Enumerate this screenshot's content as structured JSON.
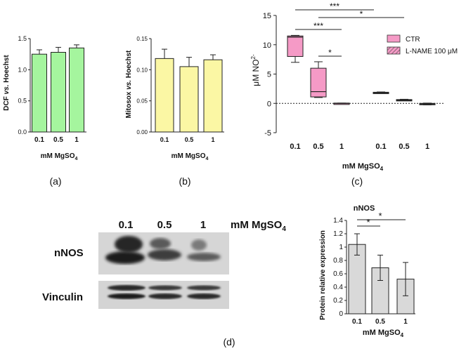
{
  "chart_data": [
    {
      "panel": "(a)",
      "type": "bar",
      "categories": [
        "0.1",
        "0.5",
        "1"
      ],
      "values": [
        1.25,
        1.28,
        1.35
      ],
      "errors": [
        0.07,
        0.08,
        0.05
      ],
      "ylabel_plain": "DCF ",
      "ylabel_ital": "vs.",
      "ylabel_tail": " Hoechst",
      "xlabel_main": "mM MgSO",
      "xlabel_sub": "4",
      "ylim": [
        0,
        1.5
      ],
      "yticks": [
        "0.0",
        "0.5",
        "1.0",
        "1.5"
      ],
      "ytick_vals": [
        0,
        0.5,
        1,
        1.5
      ],
      "color": "#a5f59e"
    },
    {
      "panel": "(b)",
      "type": "bar",
      "categories": [
        "0.1",
        "0.5",
        "1"
      ],
      "values": [
        0.118,
        0.105,
        0.116
      ],
      "errors": [
        0.015,
        0.015,
        0.008
      ],
      "ylabel_plain": "Mitosox ",
      "ylabel_ital": "vs.",
      "ylabel_tail": " Hoechst",
      "xlabel_main": "mM MgSO",
      "xlabel_sub": "4",
      "ylim": [
        0,
        0.15
      ],
      "yticks": [
        "0.00",
        "0.05",
        "0.10",
        "0.15"
      ],
      "ytick_vals": [
        0,
        0.05,
        0.1,
        0.15
      ],
      "color": "#fbf7a4"
    },
    {
      "panel": "(c)",
      "type": "box",
      "categories": [
        "0.1",
        "0.5",
        "1",
        "0.1",
        "0.5",
        "1"
      ],
      "boxes": [
        {
          "min": 7.0,
          "q1": 8.0,
          "median": 11.3,
          "q3": 11.5,
          "max": 11.6
        },
        {
          "min": 1.0,
          "q1": 1.1,
          "median": 2.0,
          "q3": 6.0,
          "max": 7.1
        },
        {
          "min": -0.05,
          "q1": -0.05,
          "median": 0.0,
          "q3": 0.05,
          "max": 0.05
        },
        {
          "min": 1.7,
          "q1": 1.75,
          "median": 1.8,
          "q3": 1.9,
          "max": 1.95
        },
        {
          "min": 0.45,
          "q1": 0.5,
          "median": 0.6,
          "q3": 0.65,
          "max": 0.7
        },
        {
          "min": -0.25,
          "q1": -0.2,
          "median": -0.1,
          "q3": 0.0,
          "max": 0.05
        }
      ],
      "ylabel": "μM NO",
      "ylabel_sup": "2-",
      "xlabel_main": "mM MgSO",
      "xlabel_sub": "4",
      "ylim": [
        -5,
        15
      ],
      "yticks": [
        "-5",
        "0",
        "5",
        "10",
        "15"
      ],
      "ytick_vals": [
        -5,
        0,
        5,
        10,
        15
      ],
      "legend": [
        "CTR",
        "L-NAME 100 μM"
      ],
      "color": "#f59ac6",
      "significance": [
        "***",
        "***",
        "*",
        "*"
      ]
    },
    {
      "panel": "(d)",
      "type": "bar",
      "title": "nNOS",
      "categories": [
        "0.1",
        "0.5",
        "1"
      ],
      "values": [
        1.04,
        0.69,
        0.52
      ],
      "errors": [
        0.16,
        0.19,
        0.25
      ],
      "ylabel": "Protein relative expression",
      "xlabel_main": "mM MgSO",
      "xlabel_sub": "4",
      "ylim": [
        0,
        1.4
      ],
      "yticks": [
        "0",
        "0.2",
        "0.4",
        "0.6",
        "0.8",
        "1",
        "1.2",
        "1.4"
      ],
      "ytick_vals": [
        0,
        0.2,
        0.4,
        0.6,
        0.8,
        1,
        1.2,
        1.4
      ],
      "color": "#d9d9d9",
      "significance": [
        "*",
        "*"
      ]
    }
  ],
  "blot": {
    "lanes": [
      "0.1",
      "0.5",
      "1"
    ],
    "header_main": "mM MgSO",
    "header_sub": "4",
    "rows": [
      "nNOS",
      "Vinculin"
    ]
  },
  "panel_labels": [
    "(a)",
    "(b)",
    "(c)",
    "(d)"
  ]
}
